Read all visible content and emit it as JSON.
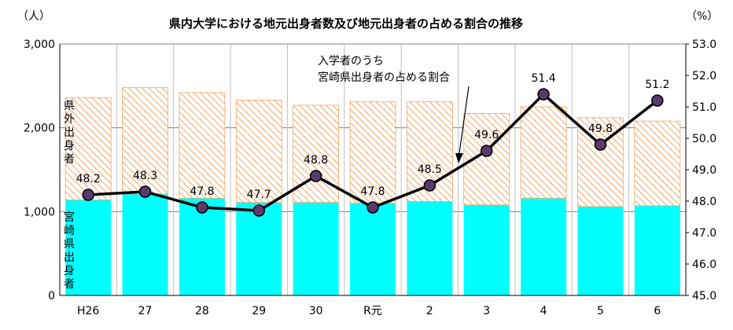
{
  "chart_data": {
    "type": "bar",
    "title": "県内大学における地元出身者数及び地元出身者の占める割合の推移",
    "y_left_unit": "（人）",
    "y_right_unit": "（%）",
    "ylim_left": [
      0,
      3000
    ],
    "ylim_right": [
      45.0,
      53.0
    ],
    "y_left_ticks": [
      "0",
      "1,000",
      "2,000",
      "3,000"
    ],
    "y_right_ticks": [
      "45.0",
      "46.0",
      "47.0",
      "48.0",
      "49.0",
      "50.0",
      "51.0",
      "52.0",
      "53.0"
    ],
    "categories": [
      "H26",
      "27",
      "28",
      "29",
      "30",
      "R元",
      "2",
      "3",
      "4",
      "5",
      "6"
    ],
    "grid": true,
    "series": [
      {
        "name": "宮崎県出身者",
        "kind": "bar-stack",
        "color": "#00ffff",
        "values": [
          1140,
          1210,
          1160,
          1110,
          1110,
          1100,
          1120,
          1080,
          1160,
          1060,
          1070
        ]
      },
      {
        "name": "県外出身者",
        "kind": "bar-stack",
        "color": "#f4a460",
        "values": [
          1220,
          1270,
          1260,
          1220,
          1160,
          1210,
          1190,
          1090,
          1090,
          1060,
          1010
        ]
      },
      {
        "name": "入学者のうち宮崎県出身者の占める割合",
        "kind": "line",
        "axis": "right",
        "color": "#000000",
        "values": [
          48.2,
          48.3,
          47.8,
          47.7,
          48.8,
          47.8,
          48.5,
          49.6,
          51.4,
          49.8,
          51.2
        ],
        "labels": [
          "48.2",
          "48.3",
          "47.8",
          "47.7",
          "48.8",
          "47.8",
          "48.5",
          "49.6",
          "51.4",
          "49.8",
          "51.2"
        ]
      }
    ],
    "bar_labels": {
      "outer": [
        "県",
        "外",
        "出",
        "身",
        "者"
      ],
      "inner": [
        "宮",
        "崎",
        "県",
        "出",
        "身",
        "者"
      ]
    },
    "annotation": {
      "lines": [
        "入学者のうち",
        "宮崎県出身者の占める割合"
      ]
    }
  }
}
